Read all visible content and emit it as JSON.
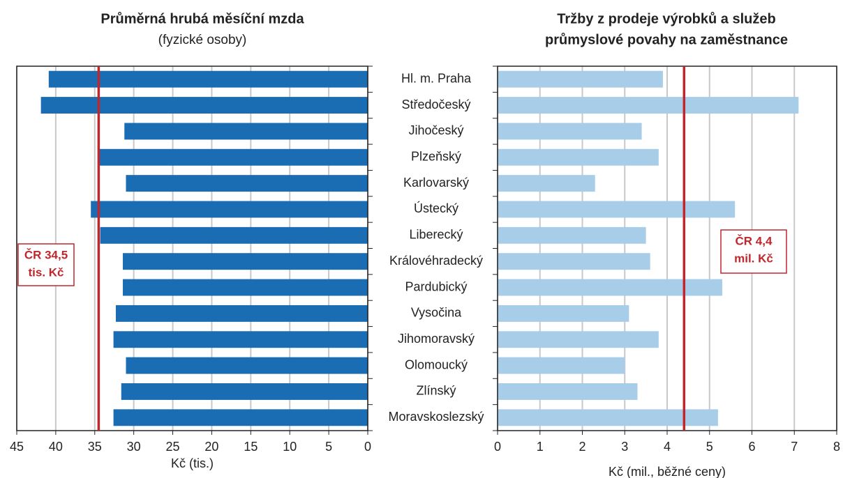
{
  "chart_data": [
    {
      "type": "bar",
      "orientation": "horizontal",
      "title": "Průměrná hrubá měsíční mzda",
      "subtitle": "(fyzické osoby)",
      "categories": [
        "Hl. m. Praha",
        "Středočeský",
        "Jihočeský",
        "Plzeňský",
        "Karlovarský",
        "Ústecký",
        "Liberecký",
        "Královéhradecký",
        "Pardubický",
        "Vysočina",
        "Jihomoravský",
        "Olomoucký",
        "Zlínský",
        "Moravskoslezský"
      ],
      "values": [
        40.9,
        41.9,
        31.2,
        34.6,
        31.0,
        35.5,
        34.3,
        31.4,
        31.4,
        32.3,
        32.6,
        31.0,
        31.6,
        32.6
      ],
      "color": "#1b6db3",
      "xlim": [
        0,
        45
      ],
      "x_reversed": true,
      "xticks": [
        0,
        5,
        10,
        15,
        20,
        25,
        30,
        35,
        40,
        45
      ],
      "xlabel": "Kč (tis.)",
      "grid": true,
      "reference": {
        "value": 34.5,
        "color": "#c0272d",
        "label": [
          "ČR 34,5",
          "tis. Kč"
        ]
      }
    },
    {
      "type": "bar",
      "orientation": "horizontal",
      "title": [
        "Tržby z prodeje výrobků a služeb",
        "průmyslové  povahy na zaměstnance"
      ],
      "values": [
        3.9,
        7.1,
        3.4,
        3.8,
        2.3,
        5.6,
        3.5,
        3.6,
        5.3,
        3.1,
        3.8,
        3.0,
        3.3,
        5.2
      ],
      "color": "#a8cde9",
      "xlim": [
        0,
        8
      ],
      "x_reversed": false,
      "xticks": [
        0,
        1,
        2,
        3,
        4,
        5,
        6,
        7,
        8
      ],
      "xlabel": "Kč (mil., běžné ceny)",
      "grid": true,
      "reference": {
        "value": 4.4,
        "color": "#c0272d",
        "label": [
          "ČR 4,4",
          "mil. Kč"
        ]
      }
    }
  ]
}
